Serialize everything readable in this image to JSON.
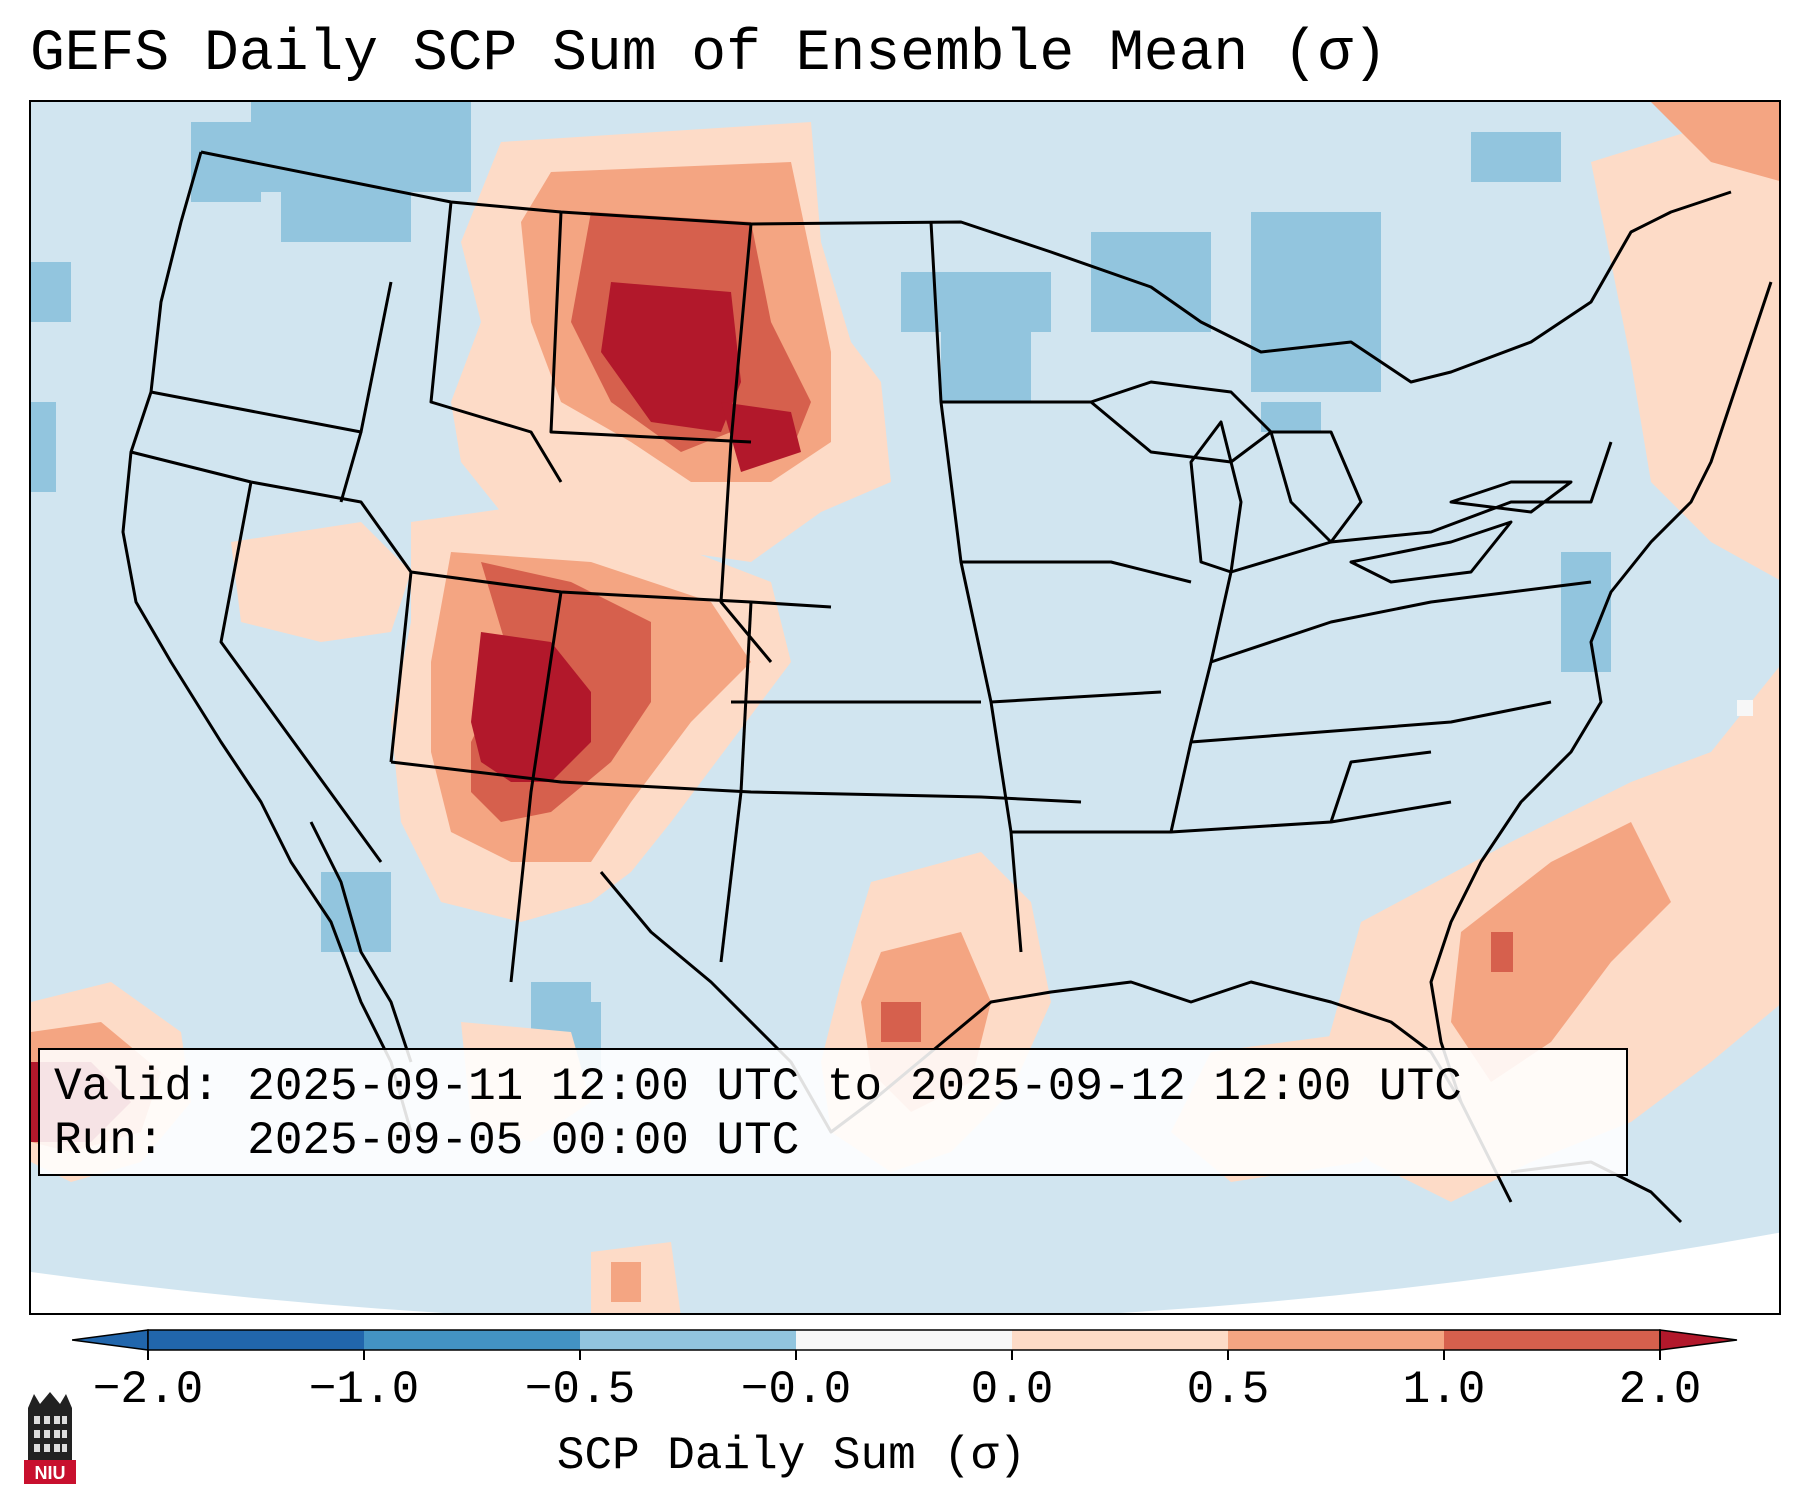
{
  "title": "GEFS Daily SCP Sum of Ensemble Mean (σ)",
  "info": {
    "valid": "Valid: 2025-09-11 12:00 UTC to 2025-09-12 12:00 UTC",
    "run": "Run:   2025-09-05 00:00 UTC"
  },
  "colorbar": {
    "label": "SCP Daily Sum (σ)",
    "ticks": [
      "−2.0",
      "−1.0",
      "−0.5",
      "−0.0",
      "0.0",
      "0.5",
      "1.0",
      "2.0"
    ],
    "colors": [
      "#2166ac",
      "#4393c3",
      "#92c5de",
      "#d1e5f0",
      "#f7f7f7",
      "#fddbc7",
      "#f4a582",
      "#d6604d",
      "#b2182b"
    ]
  },
  "logo": {
    "text": "NIU"
  }
}
